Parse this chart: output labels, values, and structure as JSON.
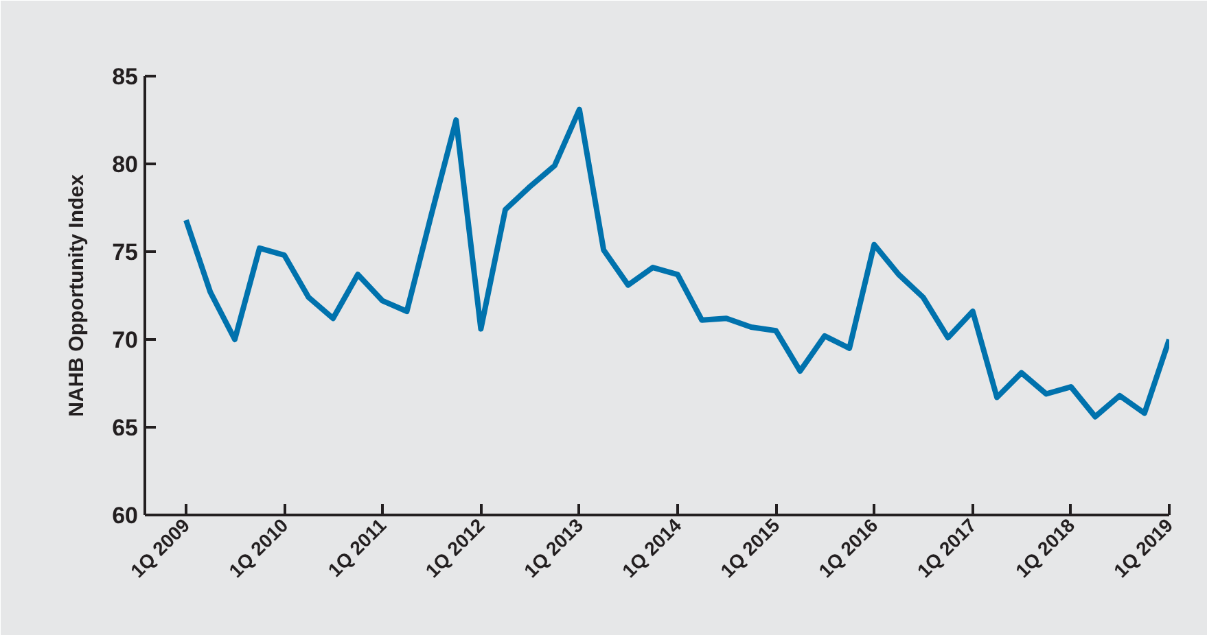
{
  "chart_data": {
    "type": "line",
    "ylabel": "NAHB Opportunity Index",
    "x": [
      "2009-01",
      "2009-04",
      "2009-07",
      "2009-10",
      "2010-01",
      "2010-04",
      "2010-07",
      "2010-10",
      "2011-01",
      "2011-04",
      "2011-07",
      "2011-10",
      "2012-01",
      "2012-04",
      "2012-07",
      "2012-10",
      "2013-01",
      "2013-04",
      "2013-07",
      "2013-10",
      "2014-01",
      "2014-04",
      "2014-07",
      "2014-10",
      "2015-01",
      "2015-04",
      "2015-07",
      "2015-10",
      "2016-01",
      "2016-04",
      "2016-07",
      "2016-10",
      "2017-01",
      "2017-04",
      "2017-07",
      "2017-10",
      "2018-01",
      "2018-04",
      "2018-07",
      "2018-10",
      "2019-01"
    ],
    "series": [
      {
        "color": "#0072ad",
        "values": [
          76.8,
          72.7,
          70.0,
          75.2,
          74.8,
          72.4,
          71.2,
          73.7,
          72.2,
          71.6,
          77.1,
          82.5,
          70.6,
          77.4,
          78.7,
          79.9,
          83.1,
          75.1,
          73.1,
          74.1,
          73.7,
          71.1,
          71.2,
          70.7,
          70.5,
          68.2,
          70.2,
          69.5,
          75.4,
          73.7,
          72.4,
          70.1,
          71.6,
          66.7,
          68.1,
          66.9,
          67.3,
          65.6,
          66.8,
          65.8,
          70.0
        ]
      }
    ],
    "xlim": [
      "2008-08",
      "2019-01"
    ],
    "xticks": [
      {
        "value": "2009-01",
        "label": "1Q 2009"
      },
      {
        "value": "2010-01",
        "label": "1Q 2010"
      },
      {
        "value": "2011-01",
        "label": "1Q 2011"
      },
      {
        "value": "2012-01",
        "label": "1Q 2012"
      },
      {
        "value": "2013-01",
        "label": "1Q 2013"
      },
      {
        "value": "2014-01",
        "label": "1Q 2014"
      },
      {
        "value": "2015-01",
        "label": "1Q 2015"
      },
      {
        "value": "2016-01",
        "label": "1Q 2016"
      },
      {
        "value": "2017-01",
        "label": "1Q 2017"
      },
      {
        "value": "2018-01",
        "label": "1Q 2018"
      },
      {
        "value": "2019-01",
        "label": "1Q 2019"
      }
    ],
    "ylim": [
      60,
      85
    ],
    "yticks": [
      60,
      65,
      70,
      75,
      80,
      85
    ],
    "marker": "none",
    "line_style": "solid"
  }
}
